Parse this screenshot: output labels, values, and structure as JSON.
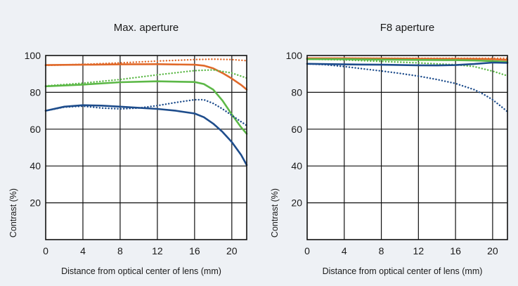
{
  "chart_data": [
    {
      "type": "line",
      "title": "Max. aperture",
      "xlabel": "Distance from optical center of lens (mm)",
      "ylabel": "Contrast (%)",
      "xlim": [
        0,
        21.6
      ],
      "ylim": [
        0,
        100
      ],
      "xticks": [
        "0",
        "4",
        "8",
        "12",
        "16",
        "20"
      ],
      "yticks": [
        "20",
        "40",
        "60",
        "80",
        "100"
      ],
      "xtick_values": [
        0,
        4,
        8,
        12,
        16,
        20
      ],
      "ytick_values": [
        20,
        40,
        60,
        80,
        100
      ],
      "grid": "on",
      "series": [
        {
          "style": "solid",
          "color": "#e0692a",
          "x": [
            0,
            4,
            8,
            12,
            16,
            17,
            18,
            19,
            20,
            21,
            21.6
          ],
          "y": [
            94.8,
            95,
            95.2,
            95.3,
            95,
            94.5,
            93,
            90.5,
            87.5,
            84,
            81.5
          ]
        },
        {
          "style": "dotted",
          "color": "#e0692a",
          "x": [
            0,
            4,
            8,
            12,
            16,
            18,
            20,
            21.6
          ],
          "y": [
            94.6,
            95.2,
            96,
            97,
            97.8,
            98,
            97.8,
            97.2
          ]
        },
        {
          "style": "solid",
          "color": "#5cb847",
          "x": [
            0,
            4,
            8,
            12,
            16,
            17,
            18,
            19,
            20,
            21,
            21.6
          ],
          "y": [
            83.3,
            84.2,
            85.5,
            86,
            85.6,
            84.5,
            81.5,
            75.5,
            68,
            61,
            57.5
          ]
        },
        {
          "style": "dotted",
          "color": "#5cb847",
          "x": [
            0,
            4,
            8,
            12,
            16,
            18,
            20,
            21.6
          ],
          "y": [
            83.5,
            85,
            87,
            89.5,
            91.8,
            92.2,
            90.5,
            87.8
          ]
        },
        {
          "style": "solid",
          "color": "#1e4d8c",
          "x": [
            0,
            2,
            4,
            6,
            8,
            12,
            14,
            16,
            17,
            18,
            19,
            20,
            21,
            21.6
          ],
          "y": [
            70,
            72.2,
            73,
            72.8,
            72.2,
            71,
            70,
            68.5,
            66.5,
            63,
            58.5,
            53,
            46,
            40.5
          ]
        },
        {
          "style": "dotted",
          "color": "#1e4d8c",
          "x": [
            0,
            2,
            4,
            6,
            8,
            10,
            12,
            14,
            16,
            17,
            18,
            19,
            20,
            21,
            21.6
          ],
          "y": [
            70,
            72,
            72.5,
            71.5,
            71,
            71.5,
            72.8,
            74.5,
            76,
            76,
            74,
            71,
            67.5,
            64,
            62
          ]
        }
      ]
    },
    {
      "type": "line",
      "title": "F8 aperture",
      "xlabel": "Distance from optical center of lens (mm)",
      "ylabel": "Contrast (%)",
      "xlim": [
        0,
        21.6
      ],
      "ylim": [
        0,
        100
      ],
      "xticks": [
        "0",
        "4",
        "8",
        "12",
        "16",
        "20"
      ],
      "yticks": [
        "20",
        "40",
        "60",
        "80",
        "100"
      ],
      "xtick_values": [
        0,
        4,
        8,
        12,
        16,
        20
      ],
      "ytick_values": [
        20,
        40,
        60,
        80,
        100
      ],
      "grid": "on",
      "series": [
        {
          "style": "solid",
          "color": "#e0692a",
          "x": [
            0,
            4,
            8,
            12,
            16,
            18,
            20,
            21.6
          ],
          "y": [
            98.5,
            98.5,
            98.4,
            98.3,
            98.2,
            98.2,
            98,
            97.6
          ]
        },
        {
          "style": "dotted",
          "color": "#e0692a",
          "x": [
            0,
            4,
            8,
            12,
            16,
            18,
            20,
            21.6
          ],
          "y": [
            98.4,
            98.5,
            98.5,
            98.5,
            98.5,
            98.5,
            98.5,
            98.5
          ]
        },
        {
          "style": "solid",
          "color": "#5cb847",
          "x": [
            0,
            4,
            8,
            12,
            16,
            18,
            20,
            21.6
          ],
          "y": [
            98,
            98,
            97.8,
            97.6,
            97.5,
            97.3,
            97,
            96.5
          ]
        },
        {
          "style": "dotted",
          "color": "#5cb847",
          "x": [
            0,
            4,
            8,
            12,
            16,
            18,
            20,
            21.6
          ],
          "y": [
            98,
            97.6,
            96.8,
            96,
            95,
            94,
            91.5,
            89
          ]
        },
        {
          "style": "solid",
          "color": "#1e4d8c",
          "x": [
            0,
            4,
            8,
            12,
            14,
            16,
            18,
            20,
            21.6
          ],
          "y": [
            95.5,
            95.2,
            95,
            94.7,
            94.6,
            94.8,
            95.4,
            96.2,
            96
          ]
        },
        {
          "style": "dotted",
          "color": "#1e4d8c",
          "x": [
            0,
            2,
            4,
            6,
            8,
            10,
            12,
            14,
            16,
            18,
            19,
            20,
            21,
            21.6
          ],
          "y": [
            95.5,
            95,
            94,
            92.8,
            91.6,
            90.3,
            88.8,
            87,
            84.8,
            81.5,
            79,
            76,
            72,
            69.5
          ]
        }
      ]
    }
  ]
}
